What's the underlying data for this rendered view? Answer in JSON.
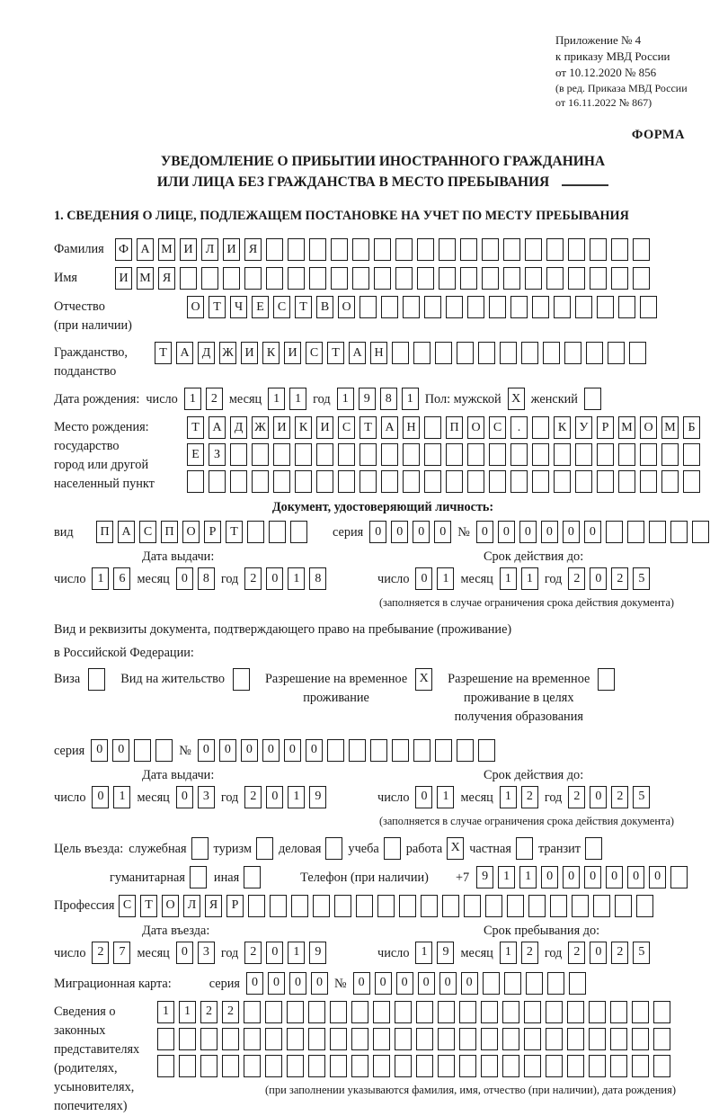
{
  "header": {
    "lines": [
      "Приложение № 4",
      "к приказу МВД России",
      "от 10.12.2020 № 856"
    ],
    "amendment": [
      "(в ред. Приказа МВД России",
      "от 16.11.2022 № 867)"
    ],
    "form_label": "ФОРМА"
  },
  "title": {
    "line1": "УВЕДОМЛЕНИЕ О ПРИБЫТИИ ИНОСТРАННОГО ГРАЖДАНИНА",
    "line2": "ИЛИ ЛИЦА БЕЗ ГРАЖДАНСТВА В МЕСТО ПРЕБЫВАНИЯ"
  },
  "section1": {
    "heading": "1. СВЕДЕНИЯ О ЛИЦЕ, ПОДЛЕЖАЩЕМ ПОСТАНОВКЕ НА УЧЕТ ПО МЕСТУ ПРЕБЫВАНИЯ"
  },
  "common": {
    "day": "число",
    "month": "месяц",
    "year": "год",
    "series": "серия",
    "number": "№"
  },
  "person": {
    "surname": {
      "label": "Фамилия",
      "value": "ФАМИЛИЯ",
      "cells": 25
    },
    "given_name": {
      "label": "Имя",
      "value": "ИМЯ",
      "cells": 25
    },
    "patronymic": {
      "label": "Отчество\n(при наличии)",
      "value": "ОТЧЕСТВО",
      "cells": 22
    },
    "citizenship": {
      "label": "Гражданство,\nподданство",
      "value": "ТАДЖИКИСТАН",
      "cells": 23
    },
    "birth_date": {
      "label": "Дата рождения:",
      "day": "12",
      "month": "11",
      "year": "1981"
    },
    "sex": {
      "label": "Пол: мужской",
      "male": "X",
      "female_label": "женский",
      "female": ""
    },
    "birth_place": {
      "label": "Место рождения:\nгосударство\nгород или другой\nнаселенный пункт",
      "row1": "ТАДЖИКИСТАН ПОС. КУРМОМБ",
      "row2": "ЕЗ",
      "row3": "",
      "cells": 24
    }
  },
  "identity_doc": {
    "heading": "Документ, удостоверяющий личность:",
    "kind": {
      "label": "вид",
      "value": "ПАСПОРТ",
      "cells": 10
    },
    "series": {
      "value": "0000",
      "cells": 4
    },
    "number": {
      "value": "000000",
      "cells": 11
    },
    "issue": {
      "heading": "Дата выдачи:",
      "day": "16",
      "month": "08",
      "year": "2018"
    },
    "valid": {
      "heading": "Срок действия до:",
      "day": "01",
      "month": "11",
      "year": "2025"
    },
    "note": "(заполняется в случае ограничения срока действия документа)"
  },
  "residence_doc": {
    "intro1": "Вид и реквизиты документа, подтверждающего право на пребывание (проживание)",
    "intro2": "в Российской Федерации:",
    "options": [
      {
        "label": "Виза",
        "checked": ""
      },
      {
        "label": "Вид на жительство",
        "checked": ""
      },
      {
        "label": "Разрешение на временное\nпроживание",
        "checked": "X"
      },
      {
        "label": "Разрешение на временное\nпроживание в целях\nполучения образования",
        "checked": ""
      }
    ],
    "series": {
      "value": "00",
      "cells": 4
    },
    "number": {
      "value": "000000",
      "cells": 14
    },
    "issue": {
      "heading": "Дата выдачи:",
      "day": "01",
      "month": "03",
      "year": "2019"
    },
    "valid": {
      "heading": "Срок действия до:",
      "day": "01",
      "month": "12",
      "year": "2025"
    },
    "note": "(заполняется в случае ограничения срока действия документа)"
  },
  "visit": {
    "purpose_label": "Цель въезда:",
    "purposes": [
      {
        "label": "служебная",
        "checked": ""
      },
      {
        "label": "туризм",
        "checked": ""
      },
      {
        "label": "деловая",
        "checked": ""
      },
      {
        "label": "учеба",
        "checked": ""
      },
      {
        "label": "работа",
        "checked": "X"
      },
      {
        "label": "частная",
        "checked": ""
      },
      {
        "label": "транзит",
        "checked": ""
      },
      {
        "label": "гуманитарная",
        "checked": ""
      },
      {
        "label": "иная",
        "checked": ""
      }
    ],
    "phone": {
      "label": "Телефон (при наличии)",
      "prefix": "+7",
      "value": "911000000",
      "cells": 10
    },
    "profession": {
      "label": "Профессия",
      "value": "СТОЛЯР",
      "cells": 25
    },
    "entry": {
      "heading": "Дата въезда:",
      "day": "27",
      "month": "03",
      "year": "2019"
    },
    "stay": {
      "heading": "Срок пребывания до:",
      "day": "19",
      "month": "12",
      "year": "2025"
    },
    "migration_card": {
      "label": "Миграционная карта:",
      "series": {
        "value": "0000",
        "cells": 4
      },
      "number": {
        "value": "000000",
        "cells": 11
      }
    }
  },
  "guardians": {
    "label": "Сведения о\nзаконных\nпредставителях\n(родителях,\nусыновителях,\nпопечителях)",
    "row1": "1122",
    "row2": "",
    "row3": "",
    "cells": 24,
    "note": "(при заполнении указываются фамилия, имя, отчество (при наличии), дата рождения)"
  }
}
